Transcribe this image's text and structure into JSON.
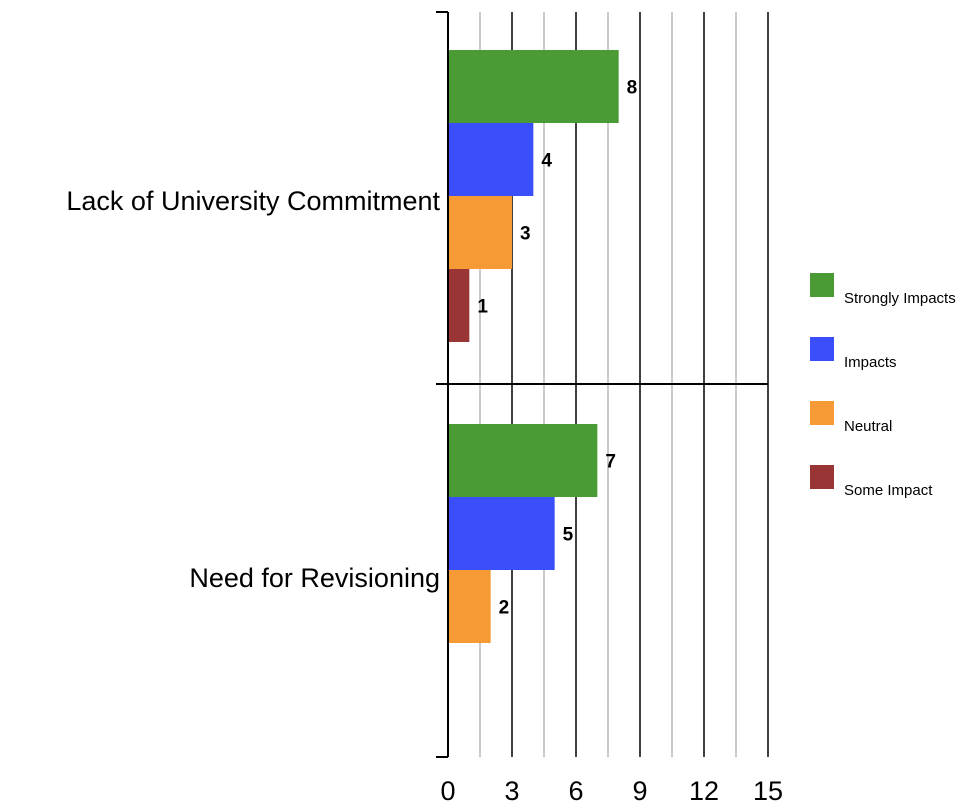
{
  "chart_data": {
    "type": "bar",
    "orientation": "horizontal",
    "categories": [
      "Lack of University Commitment",
      "Need for Revisioning"
    ],
    "series": [
      {
        "name": "Strongly Impacts",
        "values": [
          8,
          7
        ],
        "color": "#4a9a35"
      },
      {
        "name": "Impacts",
        "values": [
          4,
          5
        ],
        "color": "#3a4ffa"
      },
      {
        "name": "Neutral",
        "values": [
          3,
          2
        ],
        "color": "#f59a35"
      },
      {
        "name": "Some Impact",
        "values": [
          1,
          null
        ],
        "color": "#9a3535"
      }
    ],
    "x_ticks": [
      "0",
      "3",
      "6",
      "9",
      "12",
      "15"
    ],
    "xlim": [
      0,
      15
    ],
    "minor_gridlines_every": 1.5,
    "title": "",
    "xlabel": "",
    "ylabel": "",
    "grid": true,
    "legend_position": "right"
  }
}
